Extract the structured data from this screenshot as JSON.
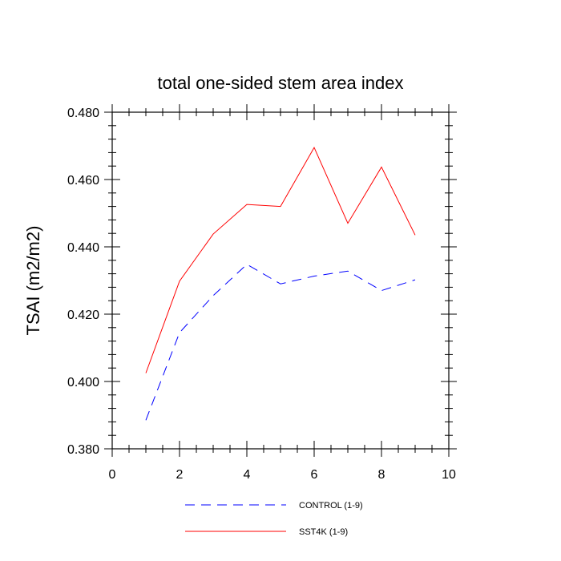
{
  "chart_data": {
    "type": "line",
    "title": "total one-sided stem area index",
    "xlabel": "",
    "ylabel": "TSAI  (m2/m2)",
    "xlim": [
      0,
      10
    ],
    "ylim": [
      0.38,
      0.48
    ],
    "xticks": [
      0,
      2,
      4,
      6,
      8,
      10
    ],
    "xtick_labels": [
      "0",
      "2",
      "4",
      "6",
      "8",
      "10"
    ],
    "yticks": [
      0.38,
      0.4,
      0.42,
      0.44,
      0.46,
      0.48
    ],
    "ytick_labels": [
      "0.380",
      "0.400",
      "0.420",
      "0.440",
      "0.460",
      "0.480"
    ],
    "grid": false,
    "legend_position": "bottom",
    "x": [
      1,
      2,
      3,
      4,
      5,
      6,
      7,
      8,
      9
    ],
    "series": [
      {
        "name": "CONTROL (1-9)",
        "color": "#0000ff",
        "style": "dashed",
        "values": [
          0.3885,
          0.4145,
          0.4255,
          0.4348,
          0.429,
          0.4313,
          0.4328,
          0.427,
          0.4302
        ]
      },
      {
        "name": "SST4K (1-9)",
        "color": "#ff0000",
        "style": "solid",
        "values": [
          0.4025,
          0.4298,
          0.4438,
          0.4526,
          0.452,
          0.4695,
          0.447,
          0.4637,
          0.4435
        ]
      }
    ]
  }
}
